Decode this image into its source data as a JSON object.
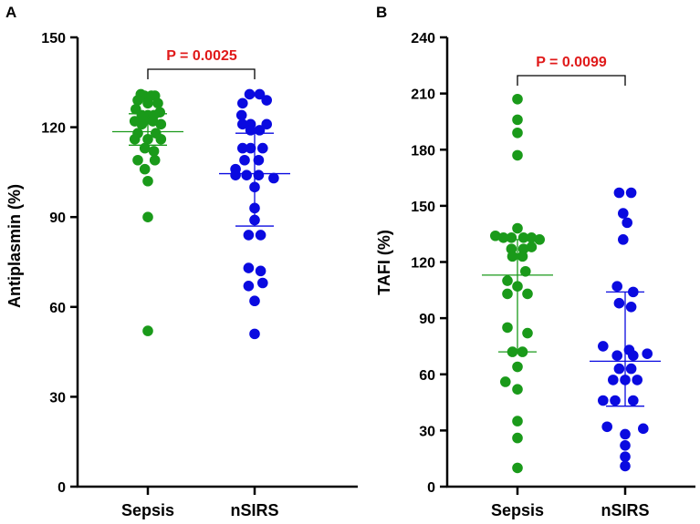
{
  "colors": {
    "sepsis": "#1a9a1a",
    "nsirs": "#0a0ae0",
    "pvalue": "#e01a1a"
  },
  "chart_data": [
    {
      "type": "scatter",
      "panel": "A",
      "ylabel": "Antiplasmin (%)",
      "ylim": [
        0,
        150
      ],
      "yticks": [
        0,
        30,
        60,
        90,
        120,
        150
      ],
      "categories": [
        "Sepsis",
        "nSIRS"
      ],
      "annotation": "P = 0.0025",
      "series": [
        {
          "name": "Sepsis",
          "points": [
            {
              "dx": -0.7,
              "y": 131
            },
            {
              "dx": -0.35,
              "y": 130.5
            },
            {
              "dx": 0.35,
              "y": 130.5
            },
            {
              "dx": 0.7,
              "y": 130.5
            },
            {
              "dx": -1,
              "y": 129
            },
            {
              "dx": 0,
              "y": 128
            },
            {
              "dx": 1,
              "y": 128
            },
            {
              "dx": -1.2,
              "y": 126
            },
            {
              "dx": 1.2,
              "y": 125
            },
            {
              "dx": -0.6,
              "y": 124
            },
            {
              "dx": 0,
              "y": 124
            },
            {
              "dx": 0.6,
              "y": 124
            },
            {
              "dx": -1.3,
              "y": 122
            },
            {
              "dx": -0.4,
              "y": 122
            },
            {
              "dx": 0.5,
              "y": 122
            },
            {
              "dx": -0.6,
              "y": 121
            },
            {
              "dx": 1.3,
              "y": 121
            },
            {
              "dx": -1,
              "y": 118
            },
            {
              "dx": 0.8,
              "y": 118
            },
            {
              "dx": -1.3,
              "y": 116
            },
            {
              "dx": 0,
              "y": 116
            },
            {
              "dx": 1.3,
              "y": 116
            },
            {
              "dx": -0.3,
              "y": 113
            },
            {
              "dx": 0.6,
              "y": 112
            },
            {
              "dx": -1,
              "y": 109
            },
            {
              "dx": 0.7,
              "y": 109
            },
            {
              "dx": -0.3,
              "y": 106
            },
            {
              "dx": 0,
              "y": 102
            },
            {
              "dx": 0,
              "y": 90
            },
            {
              "dx": 0,
              "y": 52
            }
          ],
          "median": 118.5,
          "q1": 114,
          "q3": 124.5
        },
        {
          "name": "nSIRS",
          "points": [
            {
              "dx": -0.5,
              "y": 131
            },
            {
              "dx": 0.5,
              "y": 131
            },
            {
              "dx": -1.2,
              "y": 128
            },
            {
              "dx": 1.2,
              "y": 129
            },
            {
              "dx": -1.3,
              "y": 124
            },
            {
              "dx": -1.2,
              "y": 121
            },
            {
              "dx": -0.4,
              "y": 121
            },
            {
              "dx": 1.2,
              "y": 121
            },
            {
              "dx": -0.4,
              "y": 119
            },
            {
              "dx": 0.5,
              "y": 119
            },
            {
              "dx": -1.2,
              "y": 113
            },
            {
              "dx": -0.4,
              "y": 113
            },
            {
              "dx": 0.8,
              "y": 113
            },
            {
              "dx": -1,
              "y": 109
            },
            {
              "dx": 0.4,
              "y": 109
            },
            {
              "dx": -1.9,
              "y": 106
            },
            {
              "dx": 1.9,
              "y": 103
            },
            {
              "dx": -1.9,
              "y": 104
            },
            {
              "dx": -0.8,
              "y": 104
            },
            {
              "dx": 0.4,
              "y": 104
            },
            {
              "dx": 0,
              "y": 100
            },
            {
              "dx": 0,
              "y": 93
            },
            {
              "dx": 0,
              "y": 89
            },
            {
              "dx": -0.6,
              "y": 84
            },
            {
              "dx": 0.6,
              "y": 84
            },
            {
              "dx": -0.6,
              "y": 73
            },
            {
              "dx": 0.6,
              "y": 72
            },
            {
              "dx": 0.8,
              "y": 68
            },
            {
              "dx": -0.6,
              "y": 67
            },
            {
              "dx": 0,
              "y": 62
            },
            {
              "dx": 0,
              "y": 51
            }
          ],
          "median": 104.5,
          "q1": 87,
          "q3": 118
        }
      ]
    },
    {
      "type": "scatter",
      "panel": "B",
      "ylabel": "TAFI (%)",
      "ylim": [
        0,
        240
      ],
      "yticks": [
        0,
        30,
        60,
        90,
        120,
        150,
        180,
        210,
        240
      ],
      "categories": [
        "Sepsis",
        "nSIRS"
      ],
      "annotation": "P = 0.0099",
      "series": [
        {
          "name": "Sepsis",
          "points": [
            {
              "dx": 0,
              "y": 207
            },
            {
              "dx": 0,
              "y": 196
            },
            {
              "dx": 0,
              "y": 189
            },
            {
              "dx": 0,
              "y": 177
            },
            {
              "dx": 0,
              "y": 138
            },
            {
              "dx": -2.2,
              "y": 134
            },
            {
              "dx": -1.4,
              "y": 133
            },
            {
              "dx": -0.6,
              "y": 133
            },
            {
              "dx": 0.6,
              "y": 133
            },
            {
              "dx": 1.4,
              "y": 133
            },
            {
              "dx": 2.2,
              "y": 132
            },
            {
              "dx": 0.6,
              "y": 127
            },
            {
              "dx": -0.6,
              "y": 127
            },
            {
              "dx": 1.4,
              "y": 128
            },
            {
              "dx": -0.5,
              "y": 123
            },
            {
              "dx": 0.5,
              "y": 123
            },
            {
              "dx": 0.8,
              "y": 115
            },
            {
              "dx": -1,
              "y": 110
            },
            {
              "dx": 0,
              "y": 107
            },
            {
              "dx": -1,
              "y": 103
            },
            {
              "dx": 1,
              "y": 103
            },
            {
              "dx": -1,
              "y": 85
            },
            {
              "dx": 1,
              "y": 82
            },
            {
              "dx": -0.5,
              "y": 72
            },
            {
              "dx": 0.5,
              "y": 72
            },
            {
              "dx": 0,
              "y": 64
            },
            {
              "dx": -1.2,
              "y": 56
            },
            {
              "dx": 0,
              "y": 52
            },
            {
              "dx": 0,
              "y": 35
            },
            {
              "dx": 0,
              "y": 26
            },
            {
              "dx": 0,
              "y": 10
            }
          ],
          "median": 113,
          "q1": 72,
          "q3": 132
        },
        {
          "name": "nSIRS",
          "points": [
            {
              "dx": -0.6,
              "y": 157
            },
            {
              "dx": 0.6,
              "y": 157
            },
            {
              "dx": -0.2,
              "y": 146
            },
            {
              "dx": 0.2,
              "y": 141
            },
            {
              "dx": -0.2,
              "y": 132
            },
            {
              "dx": -0.8,
              "y": 107
            },
            {
              "dx": 0.8,
              "y": 104
            },
            {
              "dx": -0.6,
              "y": 98
            },
            {
              "dx": 0.6,
              "y": 96
            },
            {
              "dx": -2.2,
              "y": 75
            },
            {
              "dx": 2.2,
              "y": 71
            },
            {
              "dx": 0.4,
              "y": 73
            },
            {
              "dx": -0.8,
              "y": 70
            },
            {
              "dx": 0.8,
              "y": 70
            },
            {
              "dx": -0.6,
              "y": 63
            },
            {
              "dx": 0.6,
              "y": 63
            },
            {
              "dx": -1.2,
              "y": 57
            },
            {
              "dx": 0,
              "y": 57
            },
            {
              "dx": 1.2,
              "y": 57
            },
            {
              "dx": -2.2,
              "y": 46
            },
            {
              "dx": 0.8,
              "y": 46
            },
            {
              "dx": -1,
              "y": 46
            },
            {
              "dx": -1.8,
              "y": 32
            },
            {
              "dx": 1.8,
              "y": 31
            },
            {
              "dx": 0,
              "y": 28
            },
            {
              "dx": 0,
              "y": 22
            },
            {
              "dx": 0,
              "y": 16
            },
            {
              "dx": 0,
              "y": 11
            }
          ],
          "median": 67,
          "q1": 43,
          "q3": 104
        }
      ]
    }
  ]
}
